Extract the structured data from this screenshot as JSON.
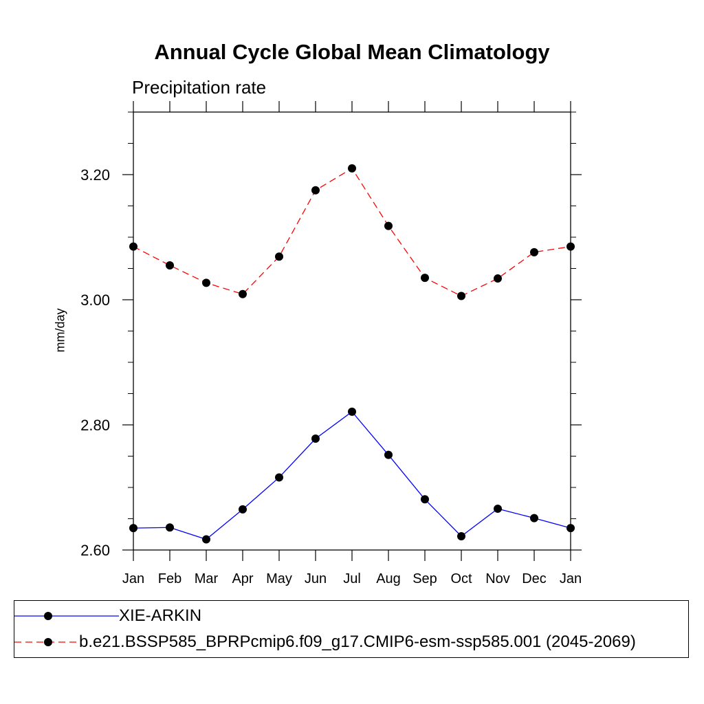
{
  "chart_data": {
    "type": "line",
    "title": "Annual Cycle Global Mean Climatology",
    "subtitle": "Precipitation rate",
    "xlabel": "",
    "ylabel": "mm/day",
    "categories": [
      "Jan",
      "Feb",
      "Mar",
      "Apr",
      "May",
      "Jun",
      "Jul",
      "Aug",
      "Sep",
      "Oct",
      "Nov",
      "Dec",
      "Jan"
    ],
    "ylim": [
      2.6,
      3.3
    ],
    "yticks": [
      2.6,
      2.8,
      3.0,
      3.2
    ],
    "ytick_labels": [
      "2.60",
      "2.80",
      "3.00",
      "3.20"
    ],
    "series": [
      {
        "name": "XIE-ARKIN",
        "color": "#0000ff",
        "dash": "solid",
        "values": [
          2.635,
          2.636,
          2.617,
          2.665,
          2.716,
          2.778,
          2.821,
          2.752,
          2.681,
          2.622,
          2.666,
          2.651,
          2.635
        ]
      },
      {
        "name": "b.e21.BSSP585_BPRPcmip6.f09_g17.CMIP6-esm-ssp585.001 (2045-2069)",
        "color": "#ff0000",
        "dash": "dashed",
        "values": [
          3.085,
          3.055,
          3.027,
          3.009,
          3.069,
          3.175,
          3.21,
          3.118,
          3.035,
          3.006,
          3.034,
          3.076,
          3.085
        ]
      }
    ],
    "legend_position": "bottom"
  }
}
